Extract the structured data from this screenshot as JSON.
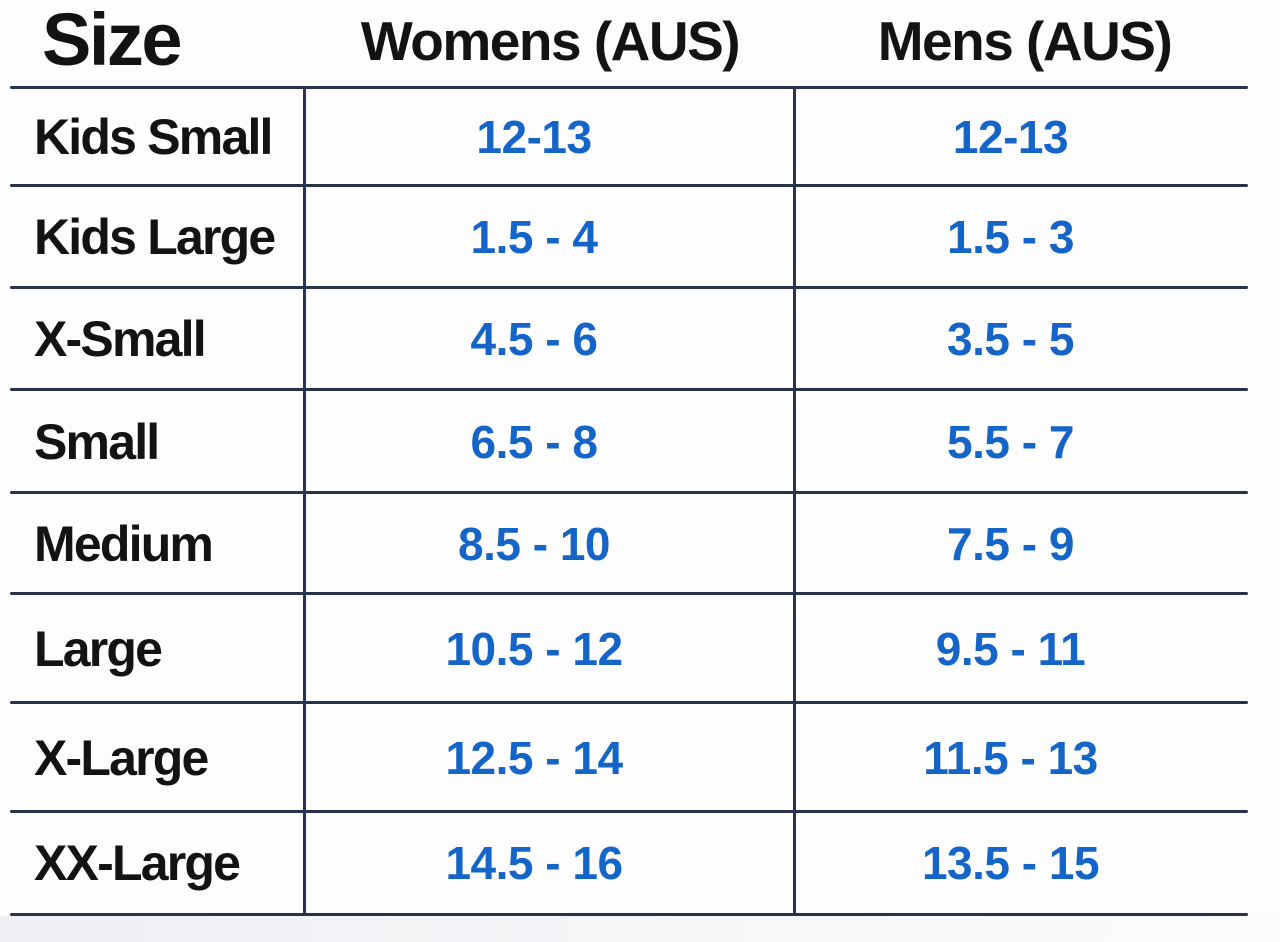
{
  "table": {
    "headers": {
      "size": "Size",
      "womens": "Womens (AUS)",
      "mens": "Mens (AUS)"
    },
    "rows": [
      {
        "size": "Kids Small",
        "womens": "12-13",
        "mens": "12-13"
      },
      {
        "size": "Kids Large",
        "womens": "1.5 - 4",
        "mens": "1.5 - 3"
      },
      {
        "size": "X-Small",
        "womens": "4.5 - 6",
        "mens": "3.5 - 5"
      },
      {
        "size": "Small",
        "womens": "6.5 - 8",
        "mens": "5.5 - 7"
      },
      {
        "size": "Medium",
        "womens": "8.5 - 10",
        "mens": "7.5 - 9"
      },
      {
        "size": "Large",
        "womens": "10.5 - 12",
        "mens": "9.5 - 11"
      },
      {
        "size": "X-Large",
        "womens": "12.5 - 14",
        "mens": "11.5 - 13"
      },
      {
        "size": "XX-Large",
        "womens": "14.5 - 16",
        "mens": "13.5 - 15"
      }
    ]
  },
  "colors": {
    "value_blue": "#1565c8",
    "grid_line": "#28324b",
    "heading_text": "#131313",
    "background": "#fdfdfe"
  }
}
